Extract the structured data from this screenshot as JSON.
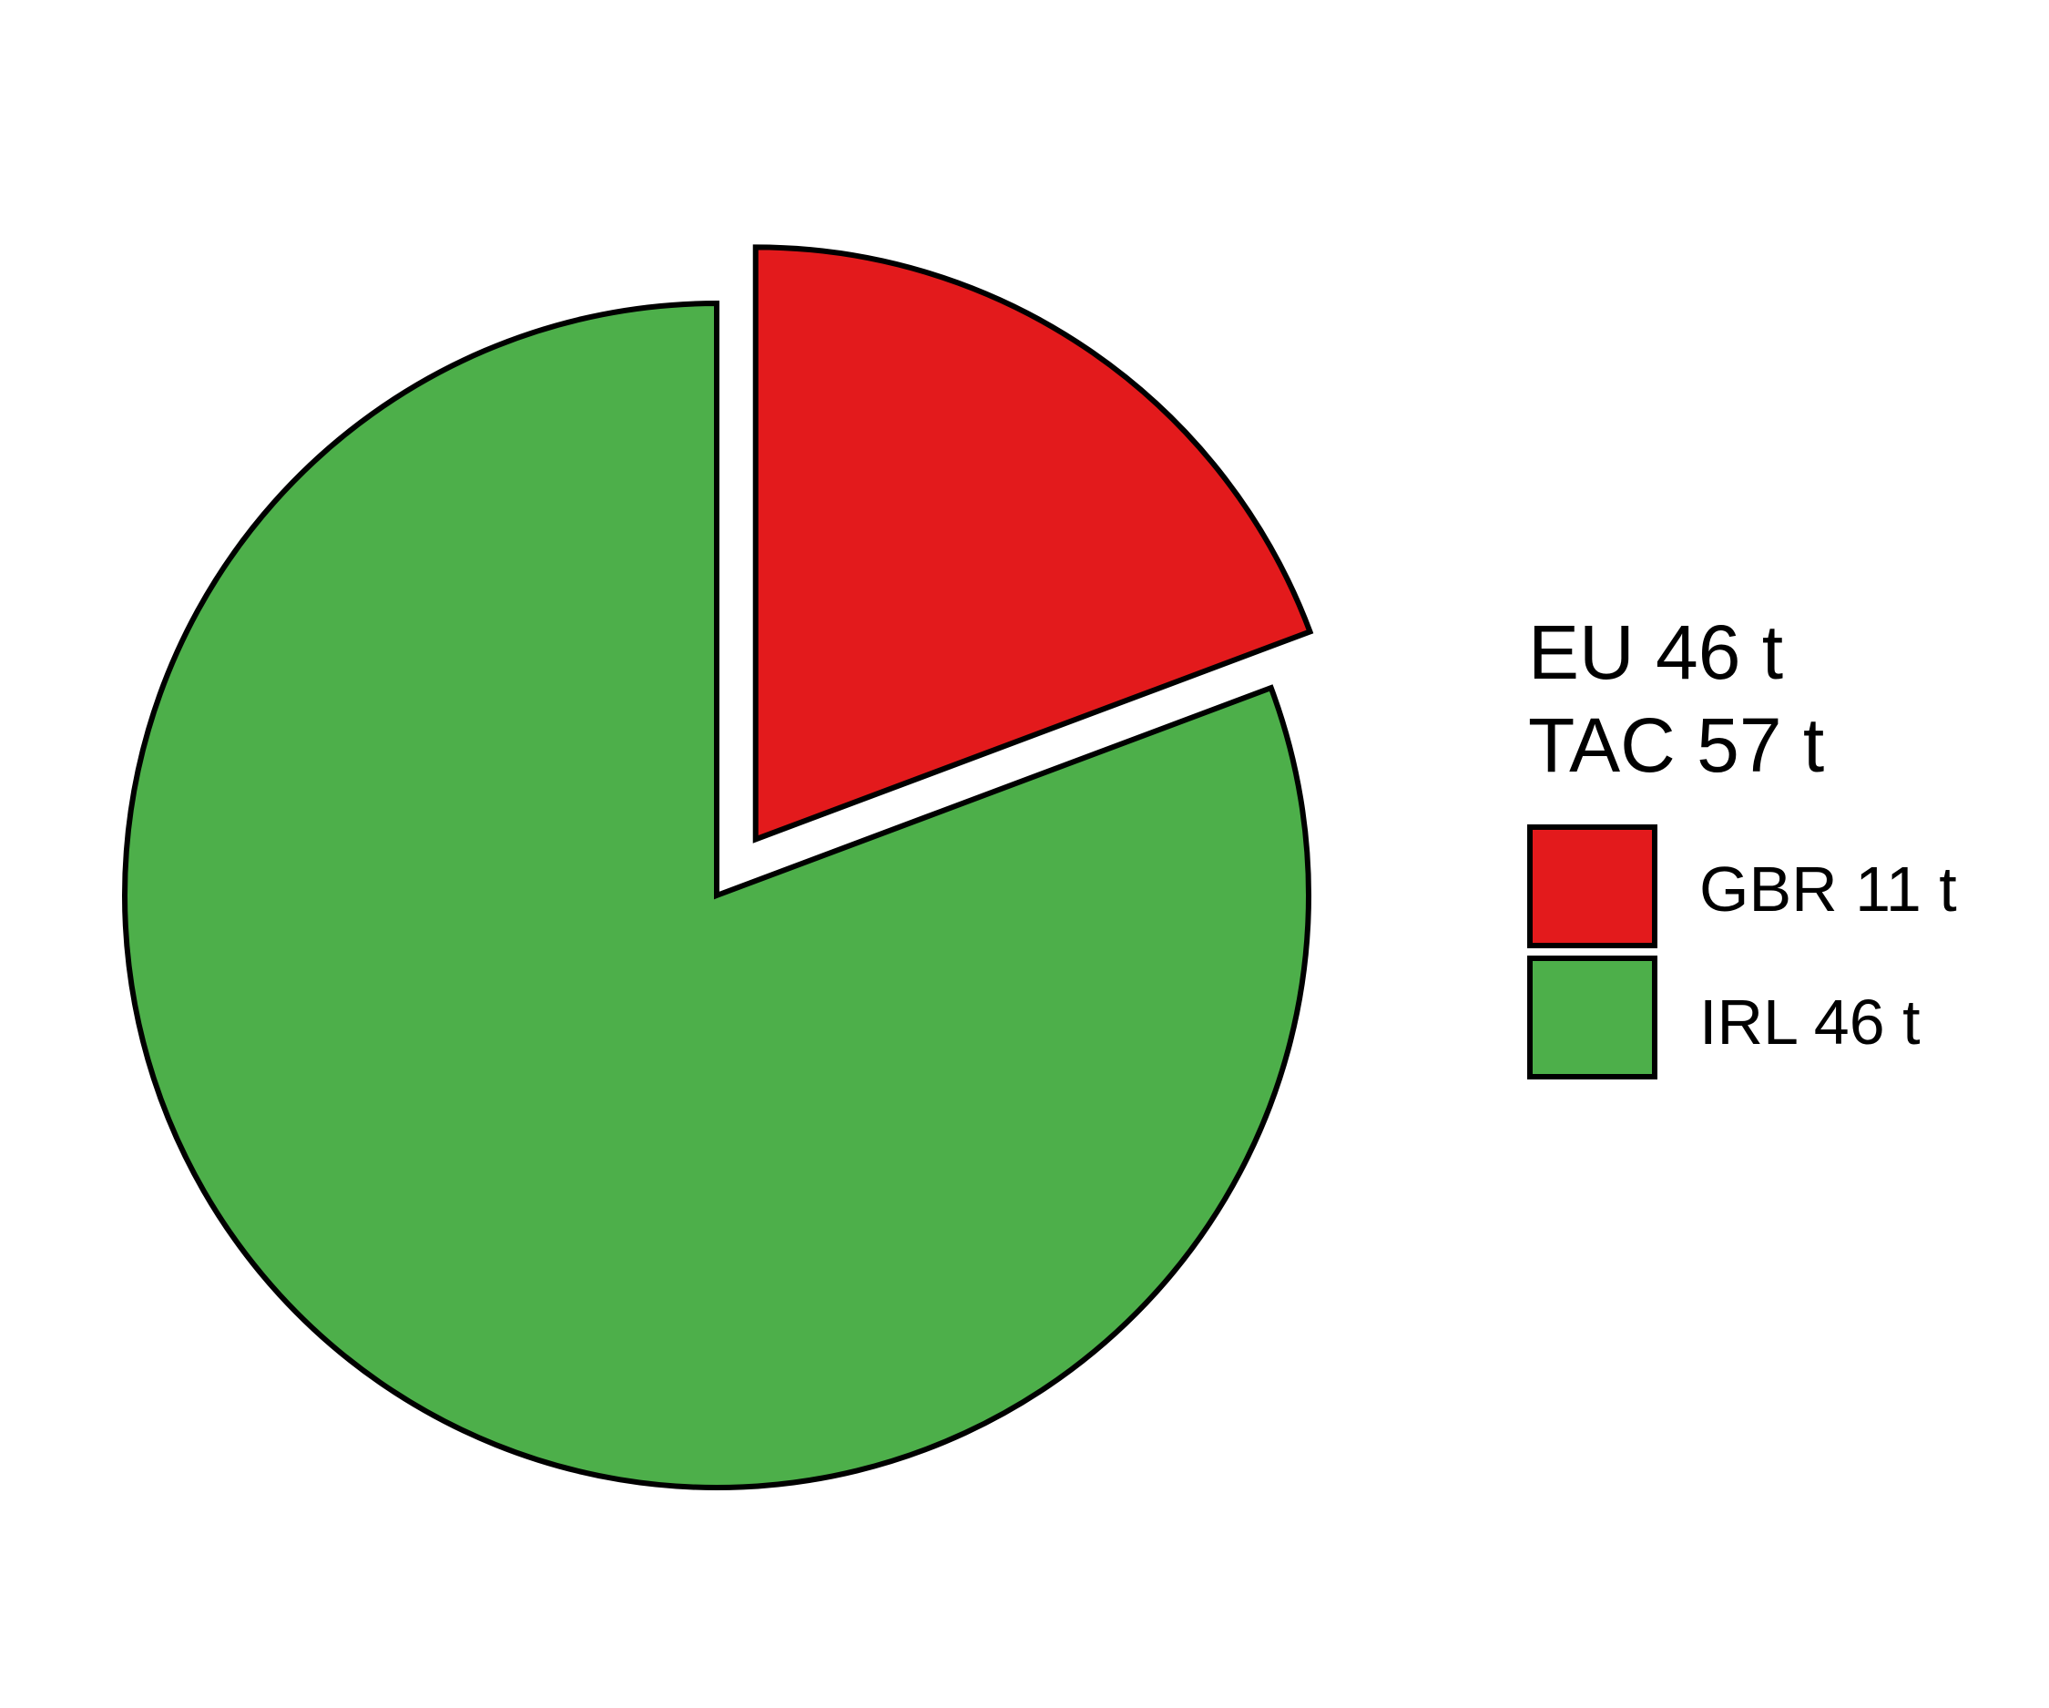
{
  "chart_data": {
    "type": "pie",
    "categories": [
      "GBR",
      "IRL"
    ],
    "values": [
      11,
      46
    ],
    "units": "t",
    "exploded": [
      "GBR"
    ],
    "colors": [
      "#e31a1c",
      "#4daf4a"
    ],
    "legend": {
      "header_lines": [
        "EU 46 t",
        "TAC 57 t"
      ],
      "entries": [
        "GBR 11 t",
        "IRL 46 t"
      ],
      "placement": "right"
    },
    "outline_color": "#000000"
  }
}
